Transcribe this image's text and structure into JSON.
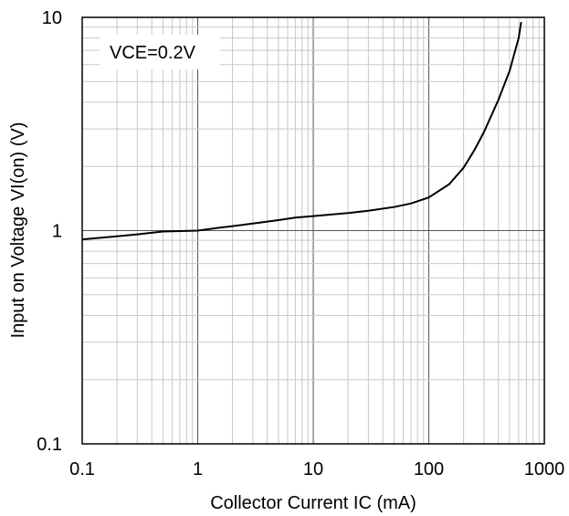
{
  "chart_data": {
    "type": "line",
    "title": "",
    "xlabel": "Collector Current IC (mA)",
    "ylabel": "Input on Voltage VI(on) (V)",
    "xscale": "log",
    "yscale": "log",
    "xlim": [
      0.1,
      1000
    ],
    "ylim": [
      0.1,
      10
    ],
    "x_ticks": [
      "0.1",
      "1",
      "10",
      "100",
      "1000"
    ],
    "y_ticks": [
      "0.1",
      "1",
      "10"
    ],
    "grid": "on (major and minor)",
    "annotation": "VCE=0.2V",
    "series": [
      {
        "x": [
          0.1,
          0.2,
          0.3,
          0.5,
          1,
          1.5,
          2,
          3,
          5,
          7,
          10,
          20,
          30,
          50,
          70,
          100,
          150,
          200,
          250,
          300,
          400,
          500,
          600,
          630
        ],
        "y": [
          0.91,
          0.94,
          0.96,
          0.99,
          1.0,
          1.03,
          1.05,
          1.08,
          1.12,
          1.15,
          1.17,
          1.21,
          1.24,
          1.29,
          1.34,
          1.43,
          1.65,
          1.97,
          2.4,
          2.9,
          4.1,
          5.6,
          8.0,
          9.5
        ]
      }
    ]
  },
  "colors": {
    "line": "#000000",
    "grid": "#c8c8c8",
    "axis": "#000000",
    "major_grid": "#555555"
  }
}
